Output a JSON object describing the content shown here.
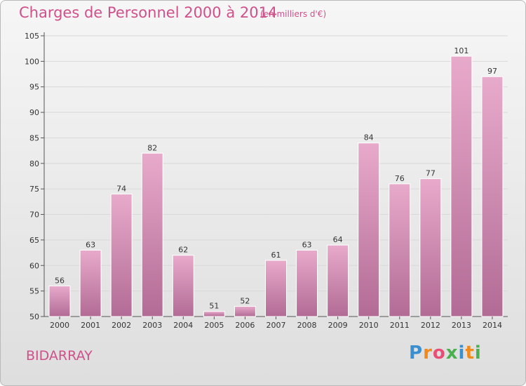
{
  "title": "Charges de Personnel 2000 à 2014",
  "subtitle": "(en milliers d'€)",
  "commune": "BIDARRAY",
  "logo": {
    "letters": [
      "P",
      "r",
      "o",
      "x",
      "i",
      "t",
      "i"
    ],
    "colors": [
      "#3a8fd1",
      "#f08a1c",
      "#e94e77",
      "#4caf50",
      "#3a8fd1",
      "#f08a1c",
      "#4caf50"
    ]
  },
  "colors": {
    "accent": "#d0508a",
    "bar_top": "#e8aacb",
    "bar_bottom": "#b26b95"
  },
  "chart_data": {
    "type": "bar",
    "categories": [
      "2000",
      "2001",
      "2002",
      "2003",
      "2004",
      "2005",
      "2006",
      "2007",
      "2008",
      "2009",
      "2010",
      "2011",
      "2012",
      "2013",
      "2014"
    ],
    "values": [
      56,
      63,
      74,
      82,
      62,
      51,
      52,
      61,
      63,
      64,
      84,
      76,
      77,
      101,
      97
    ],
    "ylim": [
      50,
      105
    ],
    "yticks": [
      50,
      55,
      60,
      65,
      70,
      75,
      80,
      85,
      90,
      95,
      100,
      105
    ],
    "title": "Charges de Personnel 2000 à 2014",
    "xlabel": "",
    "ylabel": "",
    "grid": true
  }
}
